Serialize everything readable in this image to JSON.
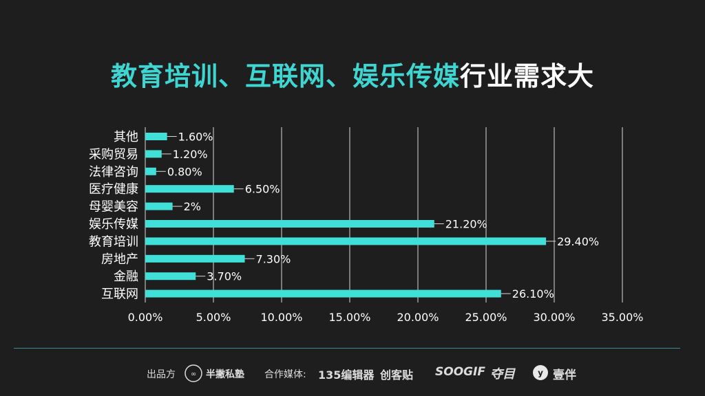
{
  "title": {
    "highlight": "教育培训、互联网、娱乐传媒",
    "rest": "行业需求大"
  },
  "colors": {
    "bar": "#40e0d8",
    "title_highlight": "#3fd6d2",
    "background": "#1e1e1e",
    "grid": "#d9d9d9"
  },
  "chart_data": {
    "type": "bar",
    "orientation": "horizontal",
    "categories": [
      "其他",
      "采购贸易",
      "法律咨询",
      "医疗健康",
      "母婴美容",
      "娱乐传媒",
      "教育培训",
      "房地产",
      "金融",
      "互联网"
    ],
    "values": [
      1.6,
      1.2,
      0.8,
      6.5,
      2,
      21.2,
      29.4,
      7.3,
      3.7,
      26.1
    ],
    "data_labels": [
      "1.60%",
      "1.20%",
      "0.80%",
      "6.50%",
      "2%",
      "21.20%",
      "29.40%",
      "7.30%",
      "3.70%",
      "26.10%"
    ],
    "xlim": [
      0,
      35
    ],
    "x_ticks": [
      0,
      5,
      10,
      15,
      20,
      25,
      30,
      35
    ],
    "x_tick_labels": [
      "0.00%",
      "5.00%",
      "10.00%",
      "15.00%",
      "20.00%",
      "25.00%",
      "30.00%",
      "35.00%"
    ],
    "grid": "vertical",
    "legend": "none"
  },
  "footer": {
    "producer_label": "出品方",
    "producer_name": "半撇私塾",
    "media_label": "合作媒体:",
    "media": [
      "135编辑器",
      "创客贴",
      "SOOGIF",
      "夺目",
      "壹伴"
    ]
  }
}
